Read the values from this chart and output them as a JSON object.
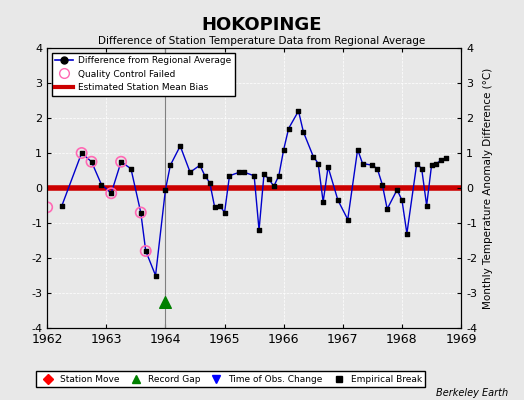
{
  "title": "HOKOPINGE",
  "subtitle": "Difference of Station Temperature Data from Regional Average",
  "ylabel": "Monthly Temperature Anomaly Difference (°C)",
  "xlim": [
    1962,
    1969
  ],
  "ylim": [
    -4,
    4
  ],
  "xticks": [
    1962,
    1963,
    1964,
    1965,
    1966,
    1967,
    1968,
    1969
  ],
  "yticks": [
    -4,
    -3,
    -2,
    -1,
    0,
    1,
    2,
    3,
    4
  ],
  "bias_line_y": 0.0,
  "gap_x": 1964.0,
  "gap_y": -3.25,
  "vline_x": 1964.0,
  "background_color": "#e8e8e8",
  "plot_background_color": "#e8e8e8",
  "line_color": "#0000cc",
  "bias_color": "#cc0000",
  "qc_color": "#ff69b4",
  "gap_color": "#008000",
  "main_data": [
    [
      1962.25,
      -0.5
    ],
    [
      1962.583,
      1.0
    ],
    [
      1962.75,
      0.75
    ],
    [
      1962.917,
      0.1
    ],
    [
      1963.083,
      -0.15
    ],
    [
      1963.25,
      0.75
    ],
    [
      1963.417,
      0.55
    ],
    [
      1963.583,
      -0.7
    ],
    [
      1963.667,
      -1.8
    ],
    [
      1963.833,
      -2.5
    ],
    [
      1964.0,
      -0.05
    ],
    [
      1964.083,
      0.65
    ],
    [
      1964.25,
      1.2
    ],
    [
      1964.417,
      0.45
    ],
    [
      1964.583,
      0.65
    ],
    [
      1964.667,
      0.35
    ],
    [
      1964.75,
      0.15
    ],
    [
      1964.833,
      -0.55
    ],
    [
      1964.917,
      -0.5
    ],
    [
      1965.0,
      -0.7
    ],
    [
      1965.083,
      0.35
    ],
    [
      1965.25,
      0.45
    ],
    [
      1965.333,
      0.45
    ],
    [
      1965.5,
      0.35
    ],
    [
      1965.583,
      -1.2
    ],
    [
      1965.667,
      0.4
    ],
    [
      1965.75,
      0.25
    ],
    [
      1965.833,
      0.05
    ],
    [
      1965.917,
      0.35
    ],
    [
      1966.0,
      1.1
    ],
    [
      1966.083,
      1.7
    ],
    [
      1966.25,
      2.2
    ],
    [
      1966.333,
      1.6
    ],
    [
      1966.5,
      0.9
    ],
    [
      1966.583,
      0.7
    ],
    [
      1966.667,
      -0.4
    ],
    [
      1966.75,
      0.6
    ],
    [
      1966.917,
      -0.35
    ],
    [
      1967.083,
      -0.9
    ],
    [
      1967.25,
      1.1
    ],
    [
      1967.333,
      0.7
    ],
    [
      1967.5,
      0.65
    ],
    [
      1967.583,
      0.55
    ],
    [
      1967.667,
      0.1
    ],
    [
      1967.75,
      -0.6
    ],
    [
      1967.917,
      -0.05
    ],
    [
      1968.0,
      -0.35
    ],
    [
      1968.083,
      -1.3
    ],
    [
      1968.25,
      0.7
    ],
    [
      1968.333,
      0.55
    ],
    [
      1968.417,
      -0.5
    ],
    [
      1968.5,
      0.65
    ],
    [
      1968.583,
      0.7
    ],
    [
      1968.667,
      0.8
    ],
    [
      1968.75,
      0.85
    ]
  ],
  "qc_failed": [
    [
      1962.0,
      -0.55
    ],
    [
      1962.583,
      1.0
    ],
    [
      1962.75,
      0.75
    ],
    [
      1963.083,
      -0.15
    ],
    [
      1963.25,
      0.75
    ],
    [
      1963.583,
      -0.7
    ],
    [
      1963.667,
      -1.8
    ]
  ],
  "berkeley_earth_text": "Berkeley Earth"
}
